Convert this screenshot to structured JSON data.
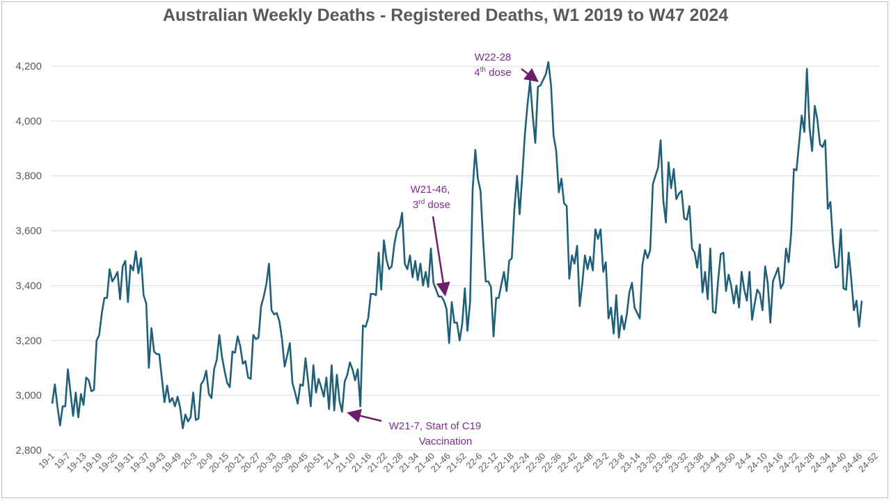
{
  "chart_data": {
    "type": "line",
    "title": "Australian Weekly Deaths - Registered Deaths, W1 2019 to W47 2024",
    "ylim": [
      2800,
      4300
    ],
    "yticks": [
      "2,800",
      "3,000",
      "3,200",
      "3,400",
      "3,600",
      "3,800",
      "4,000",
      "4,200"
    ],
    "ytick_values": [
      2800,
      3000,
      3200,
      3400,
      3600,
      3800,
      4000,
      4200
    ],
    "xticks": [
      "19-1",
      "19-7",
      "19-13",
      "19-19",
      "19-25",
      "19-31",
      "19-37",
      "19-43",
      "19-49",
      "20-3",
      "20-9",
      "20-15",
      "20-21",
      "20-27",
      "20-33",
      "20-39",
      "20-45",
      "20-51",
      "21-4",
      "21-10",
      "21-16",
      "21-22",
      "21-28",
      "21-34",
      "21-40",
      "21-46",
      "21-52",
      "22-6",
      "22-12",
      "22-18",
      "22-24",
      "22-30",
      "22-36",
      "22-42",
      "22-48",
      "23-2",
      "23-8",
      "23-14",
      "23-20",
      "23-26",
      "23-32",
      "23-38",
      "23-44",
      "23-50",
      "24-4",
      "24-10",
      "24-16",
      "24-22",
      "24-28",
      "24-34",
      "24-40",
      "24-46",
      "24-52"
    ],
    "grid": true,
    "series": [
      {
        "color": "#1f5f7a",
        "values": [
          2970,
          3040,
          2960,
          2890,
          2960,
          2960,
          3095,
          3010,
          2925,
          3010,
          2920,
          3005,
          2965,
          3065,
          3055,
          3015,
          3020,
          3200,
          3220,
          3300,
          3355,
          3355,
          3460,
          3415,
          3430,
          3450,
          3350,
          3470,
          3490,
          3340,
          3475,
          3455,
          3525,
          3445,
          3500,
          3365,
          3335,
          3100,
          3245,
          3160,
          3150,
          3150,
          3060,
          2975,
          3035,
          2975,
          2990,
          2960,
          2995,
          2955,
          2880,
          2930,
          2905,
          2920,
          3010,
          2910,
          2915,
          3040,
          3055,
          3090,
          3005,
          2990,
          3095,
          3130,
          3220,
          3140,
          3090,
          3045,
          3030,
          3160,
          3155,
          3215,
          3180,
          3115,
          3125,
          3065,
          3060,
          3220,
          3205,
          3210,
          3325,
          3360,
          3405,
          3480,
          3310,
          3295,
          3300,
          3270,
          3205,
          3105,
          3145,
          3190,
          3045,
          3010,
          2970,
          3040,
          3035,
          3135,
          3050,
          2960,
          3110,
          3010,
          3060,
          3030,
          2995,
          3065,
          2950,
          3110,
          2945,
          3075,
          2980,
          2940,
          3050,
          3075,
          3120,
          3095,
          3055,
          3095,
          2960,
          3255,
          3250,
          3280,
          3370,
          3370,
          3365,
          3520,
          3385,
          3565,
          3495,
          3460,
          3470,
          3550,
          3600,
          3615,
          3665,
          3480,
          3460,
          3510,
          3430,
          3490,
          3420,
          3480,
          3400,
          3450,
          3395,
          3535,
          3410,
          3385,
          3360,
          3360,
          3345,
          3315,
          3190,
          3340,
          3265,
          3265,
          3200,
          3260,
          3390,
          3235,
          3340,
          3750,
          3895,
          3790,
          3745,
          3570,
          3415,
          3415,
          3395,
          3215,
          3355,
          3355,
          3405,
          3450,
          3380,
          3490,
          3500,
          3680,
          3800,
          3660,
          3800,
          3950,
          4060,
          4145,
          4020,
          3920,
          4125,
          4130,
          4150,
          4170,
          4215,
          4130,
          3945,
          3890,
          3740,
          3790,
          3700,
          3690,
          3425,
          3510,
          3480,
          3545,
          3325,
          3410,
          3510,
          3460,
          3505,
          3455,
          3605,
          3570,
          3605,
          3450,
          3485,
          3280,
          3320,
          3225,
          3365,
          3210,
          3290,
          3240,
          3295,
          3375,
          3410,
          3320,
          3300,
          3280,
          3475,
          3530,
          3500,
          3530,
          3770,
          3800,
          3830,
          3930,
          3710,
          3630,
          3850,
          3755,
          3825,
          3715,
          3735,
          3745,
          3645,
          3640,
          3690,
          3535,
          3520,
          3465,
          3550,
          3375,
          3450,
          3350,
          3535,
          3305,
          3300,
          3420,
          3515,
          3520,
          3380,
          3440,
          3400,
          3335,
          3400,
          3320,
          3450,
          3385,
          3345,
          3450,
          3275,
          3335,
          3385,
          3370,
          3310,
          3470,
          3410,
          3265,
          3415,
          3440,
          3465,
          3390,
          3410,
          3535,
          3485,
          3595,
          3825,
          3820,
          3920,
          4020,
          3960,
          4190,
          3975,
          3890,
          4055,
          4005,
          3915,
          3905,
          3930,
          3680,
          3705,
          3555,
          3465,
          3470,
          3605,
          3390,
          3385,
          3520,
          3420,
          3310,
          3345,
          3250,
          3345
        ]
      }
    ],
    "annotations": [
      {
        "label": "W21-7, Start of C19",
        "label2": "Vaccination"
      },
      {
        "label": "W21-46,",
        "label2_num": "3",
        "label2_sup": "rd",
        "label2_rest": " dose"
      },
      {
        "label": "W22-28",
        "label2_num": "4",
        "label2_sup": "th",
        "label2_rest": " dose"
      }
    ]
  }
}
